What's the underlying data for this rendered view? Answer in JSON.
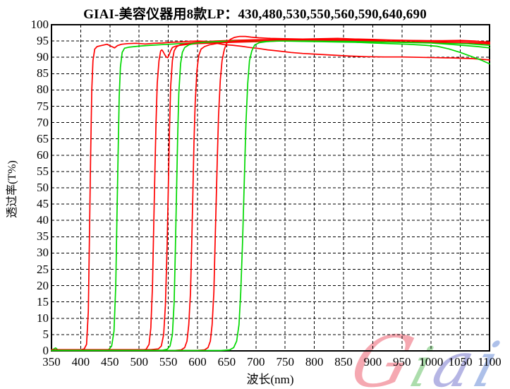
{
  "page": {
    "background": "#ffffff"
  },
  "chart_data": {
    "type": "line",
    "title": "GIAI-美容仪器用8款LP：430,480,530,550,560,590,640,690",
    "xlabel": "波长(nm)",
    "ylabel": "透过率(T%)",
    "xlim": [
      350,
      1100
    ],
    "ylim": [
      0,
      100
    ],
    "x_ticks": [
      350,
      400,
      450,
      500,
      550,
      600,
      650,
      700,
      750,
      800,
      850,
      900,
      950,
      1000,
      1050,
      1100
    ],
    "y_ticks": [
      0,
      5,
      10,
      15,
      20,
      25,
      30,
      35,
      40,
      45,
      50,
      55,
      60,
      65,
      70,
      75,
      80,
      85,
      90,
      95,
      100
    ],
    "grid": true,
    "grid_style": "dashed",
    "grid_color": "#000000",
    "legend_position": "none",
    "series": [
      {
        "name": "LP430",
        "color": "#ff0000",
        "points": [
          [
            350,
            0.3
          ],
          [
            380,
            0.3
          ],
          [
            400,
            0.3
          ],
          [
            406,
            0.6
          ],
          [
            410,
            2
          ],
          [
            413,
            12
          ],
          [
            415,
            35
          ],
          [
            417,
            60
          ],
          [
            419,
            80
          ],
          [
            421,
            89
          ],
          [
            424,
            92.5
          ],
          [
            428,
            93.3
          ],
          [
            435,
            93.6
          ],
          [
            445,
            94
          ],
          [
            452,
            93.4
          ],
          [
            458,
            92.9
          ],
          [
            463,
            93.6
          ],
          [
            470,
            94
          ],
          [
            480,
            94.2
          ],
          [
            495,
            94.3
          ],
          [
            510,
            94.1
          ],
          [
            525,
            94.3
          ],
          [
            540,
            94.4
          ],
          [
            555,
            94.6
          ],
          [
            570,
            94.7
          ],
          [
            585,
            94.9
          ],
          [
            600,
            95
          ],
          [
            615,
            94.9
          ],
          [
            630,
            94.4
          ],
          [
            645,
            93.9
          ],
          [
            660,
            93.7
          ],
          [
            675,
            93.4
          ],
          [
            690,
            93
          ],
          [
            705,
            92.7
          ],
          [
            720,
            92.3
          ],
          [
            740,
            91.9
          ],
          [
            760,
            91.5
          ],
          [
            780,
            91.2
          ],
          [
            800,
            91
          ],
          [
            830,
            90.7
          ],
          [
            860,
            90.4
          ],
          [
            890,
            90.2
          ],
          [
            920,
            90.1
          ],
          [
            950,
            90.1
          ],
          [
            980,
            90
          ],
          [
            1010,
            89.9
          ],
          [
            1040,
            89.8
          ],
          [
            1070,
            89.6
          ],
          [
            1100,
            89.2
          ]
        ]
      },
      {
        "name": "LP480",
        "color": "#00d800",
        "points": [
          [
            350,
            0.1
          ],
          [
            353,
            0.5
          ],
          [
            357,
            0.9
          ],
          [
            361,
            0.3
          ],
          [
            370,
            0.1
          ],
          [
            400,
            0.1
          ],
          [
            440,
            0.1
          ],
          [
            448,
            0.4
          ],
          [
            453,
            1.5
          ],
          [
            457,
            6
          ],
          [
            460,
            20
          ],
          [
            462,
            40
          ],
          [
            464,
            60
          ],
          [
            466,
            78
          ],
          [
            468,
            87
          ],
          [
            471,
            91.5
          ],
          [
            475,
            92.8
          ],
          [
            482,
            93.1
          ],
          [
            492,
            93.3
          ],
          [
            505,
            93.5
          ],
          [
            520,
            93.7
          ],
          [
            540,
            93.9
          ],
          [
            560,
            94.1
          ],
          [
            580,
            94.3
          ],
          [
            600,
            94.5
          ],
          [
            630,
            94.7
          ],
          [
            660,
            94.8
          ],
          [
            690,
            95
          ],
          [
            720,
            95
          ],
          [
            750,
            95
          ],
          [
            780,
            94.9
          ],
          [
            810,
            94.8
          ],
          [
            840,
            94.7
          ],
          [
            870,
            94.6
          ],
          [
            900,
            94.4
          ],
          [
            930,
            94.2
          ],
          [
            960,
            94
          ],
          [
            990,
            93.7
          ],
          [
            1010,
            93.4
          ],
          [
            1030,
            92.6
          ],
          [
            1050,
            91.5
          ],
          [
            1070,
            90.2
          ],
          [
            1085,
            89.2
          ],
          [
            1100,
            88
          ]
        ]
      },
      {
        "name": "LP530",
        "color": "#ff0000",
        "points": [
          [
            350,
            0.2
          ],
          [
            450,
            0.2
          ],
          [
            505,
            0.2
          ],
          [
            512,
            0.5
          ],
          [
            517,
            2
          ],
          [
            520,
            7
          ],
          [
            523,
            20
          ],
          [
            525,
            38
          ],
          [
            527,
            55
          ],
          [
            529,
            70
          ],
          [
            531,
            82
          ],
          [
            534,
            89
          ],
          [
            537,
            92
          ],
          [
            539,
            92.3
          ],
          [
            541,
            91.8
          ],
          [
            544,
            90.8
          ],
          [
            547,
            90
          ],
          [
            549,
            89.9
          ],
          [
            551,
            90.6
          ],
          [
            554,
            92
          ],
          [
            557,
            93
          ],
          [
            562,
            93.4
          ],
          [
            570,
            93.7
          ],
          [
            580,
            93.9
          ],
          [
            600,
            94.2
          ],
          [
            630,
            94.4
          ],
          [
            660,
            94.6
          ],
          [
            700,
            94.8
          ],
          [
            740,
            95
          ],
          [
            780,
            95.1
          ],
          [
            820,
            95.1
          ],
          [
            860,
            95
          ],
          [
            900,
            94.9
          ],
          [
            940,
            94.7
          ],
          [
            980,
            94.6
          ],
          [
            1020,
            94.5
          ],
          [
            1060,
            94.5
          ],
          [
            1100,
            94.1
          ]
        ]
      },
      {
        "name": "LP550",
        "color": "#ff0000",
        "points": [
          [
            350,
            0.4
          ],
          [
            450,
            0.4
          ],
          [
            520,
            0.4
          ],
          [
            533,
            0.6
          ],
          [
            538,
            1.5
          ],
          [
            542,
            5
          ],
          [
            545,
            14
          ],
          [
            548,
            32
          ],
          [
            550,
            50
          ],
          [
            552,
            68
          ],
          [
            554,
            81
          ],
          [
            557,
            89
          ],
          [
            560,
            92
          ],
          [
            564,
            93.2
          ],
          [
            570,
            93.8
          ],
          [
            580,
            94.2
          ],
          [
            600,
            94.6
          ],
          [
            630,
            95
          ],
          [
            660,
            95.2
          ],
          [
            700,
            95.4
          ],
          [
            740,
            95.5
          ],
          [
            780,
            95.5
          ],
          [
            820,
            95.5
          ],
          [
            860,
            95.4
          ],
          [
            900,
            95.3
          ],
          [
            940,
            95.2
          ],
          [
            980,
            95.1
          ],
          [
            1020,
            95
          ],
          [
            1060,
            95
          ],
          [
            1100,
            94.7
          ]
        ]
      },
      {
        "name": "LP560",
        "color": "#00d800",
        "points": [
          [
            350,
            0.2
          ],
          [
            450,
            0.2
          ],
          [
            540,
            0.2
          ],
          [
            548,
            0.5
          ],
          [
            553,
            1.5
          ],
          [
            557,
            5
          ],
          [
            560,
            15
          ],
          [
            562,
            30
          ],
          [
            564,
            48
          ],
          [
            566,
            65
          ],
          [
            568,
            79
          ],
          [
            571,
            88
          ],
          [
            574,
            91.5
          ],
          [
            578,
            93
          ],
          [
            585,
            93.8
          ],
          [
            595,
            94.3
          ],
          [
            610,
            94.6
          ],
          [
            640,
            94.9
          ],
          [
            670,
            95
          ],
          [
            700,
            95.1
          ],
          [
            740,
            95.1
          ],
          [
            780,
            95
          ],
          [
            820,
            95
          ],
          [
            860,
            94.9
          ],
          [
            900,
            94.8
          ],
          [
            940,
            94.7
          ],
          [
            980,
            94.6
          ],
          [
            1020,
            94.4
          ],
          [
            1060,
            94.2
          ],
          [
            1100,
            93.7
          ]
        ]
      },
      {
        "name": "LP590",
        "color": "#ff0000",
        "points": [
          [
            350,
            0.1
          ],
          [
            450,
            0.1
          ],
          [
            560,
            0.1
          ],
          [
            572,
            0.3
          ],
          [
            578,
            1
          ],
          [
            582,
            3
          ],
          [
            585,
            8
          ],
          [
            588,
            18
          ],
          [
            590,
            32
          ],
          [
            592,
            48
          ],
          [
            594,
            64
          ],
          [
            596,
            76
          ],
          [
            599,
            86
          ],
          [
            602,
            90.5
          ],
          [
            606,
            92.5
          ],
          [
            612,
            93.3
          ],
          [
            620,
            93.8
          ],
          [
            632,
            94.2
          ],
          [
            648,
            94.6
          ],
          [
            665,
            94.9
          ],
          [
            685,
            95.1
          ],
          [
            705,
            95.2
          ],
          [
            745,
            95.3
          ],
          [
            785,
            95.3
          ],
          [
            825,
            95.2
          ],
          [
            865,
            95.1
          ],
          [
            905,
            95
          ],
          [
            945,
            94.8
          ],
          [
            985,
            94.7
          ],
          [
            1025,
            94.6
          ],
          [
            1065,
            94.5
          ],
          [
            1100,
            94.3
          ]
        ]
      },
      {
        "name": "LP640",
        "color": "#ff0000",
        "points": [
          [
            350,
            0.15
          ],
          [
            450,
            0.15
          ],
          [
            600,
            0.15
          ],
          [
            612,
            0.3
          ],
          [
            618,
            1
          ],
          [
            622,
            3
          ],
          [
            625,
            8
          ],
          [
            628,
            18
          ],
          [
            630,
            32
          ],
          [
            632,
            46
          ],
          [
            634,
            60
          ],
          [
            636,
            72
          ],
          [
            639,
            83
          ],
          [
            642,
            89
          ],
          [
            646,
            92.5
          ],
          [
            650,
            94.3
          ],
          [
            656,
            95.5
          ],
          [
            663,
            96.1
          ],
          [
            672,
            96.4
          ],
          [
            682,
            96.4
          ],
          [
            692,
            96.2
          ],
          [
            705,
            96
          ],
          [
            725,
            95.8
          ],
          [
            750,
            95.7
          ],
          [
            780,
            95.6
          ],
          [
            810,
            95.7
          ],
          [
            840,
            95.8
          ],
          [
            870,
            95.6
          ],
          [
            900,
            95.5
          ],
          [
            930,
            95.3
          ],
          [
            960,
            95.2
          ],
          [
            990,
            95.1
          ],
          [
            1020,
            95.1
          ],
          [
            1050,
            95.2
          ],
          [
            1075,
            95
          ],
          [
            1100,
            94.5
          ]
        ]
      },
      {
        "name": "LP690",
        "color": "#00d800",
        "points": [
          [
            350,
            0.1
          ],
          [
            450,
            0.1
          ],
          [
            640,
            0.1
          ],
          [
            655,
            0.3
          ],
          [
            662,
            1
          ],
          [
            667,
            3
          ],
          [
            671,
            8
          ],
          [
            674,
            18
          ],
          [
            677,
            33
          ],
          [
            679,
            45
          ],
          [
            681,
            58
          ],
          [
            683,
            70
          ],
          [
            686,
            82
          ],
          [
            689,
            89
          ],
          [
            693,
            92
          ],
          [
            698,
            93.8
          ],
          [
            706,
            94.5
          ],
          [
            718,
            94.8
          ],
          [
            735,
            95
          ],
          [
            760,
            95
          ],
          [
            790,
            95
          ],
          [
            820,
            94.9
          ],
          [
            850,
            94.9
          ],
          [
            880,
            94.8
          ],
          [
            910,
            94.7
          ],
          [
            940,
            94.6
          ],
          [
            970,
            94.5
          ],
          [
            1000,
            94.4
          ],
          [
            1030,
            94
          ],
          [
            1060,
            93.6
          ],
          [
            1080,
            93.3
          ],
          [
            1100,
            92.9
          ]
        ]
      }
    ]
  },
  "watermark": {
    "text": "Giai",
    "letters": [
      {
        "char": "G",
        "color": "#f49aa4",
        "size": 100
      },
      {
        "char": "i",
        "color": "#9ed89e",
        "size": 78
      },
      {
        "char": "a",
        "color": "#a9a9e0",
        "size": 88
      },
      {
        "char": "i",
        "color": "#9fb6e6",
        "size": 88
      }
    ]
  }
}
